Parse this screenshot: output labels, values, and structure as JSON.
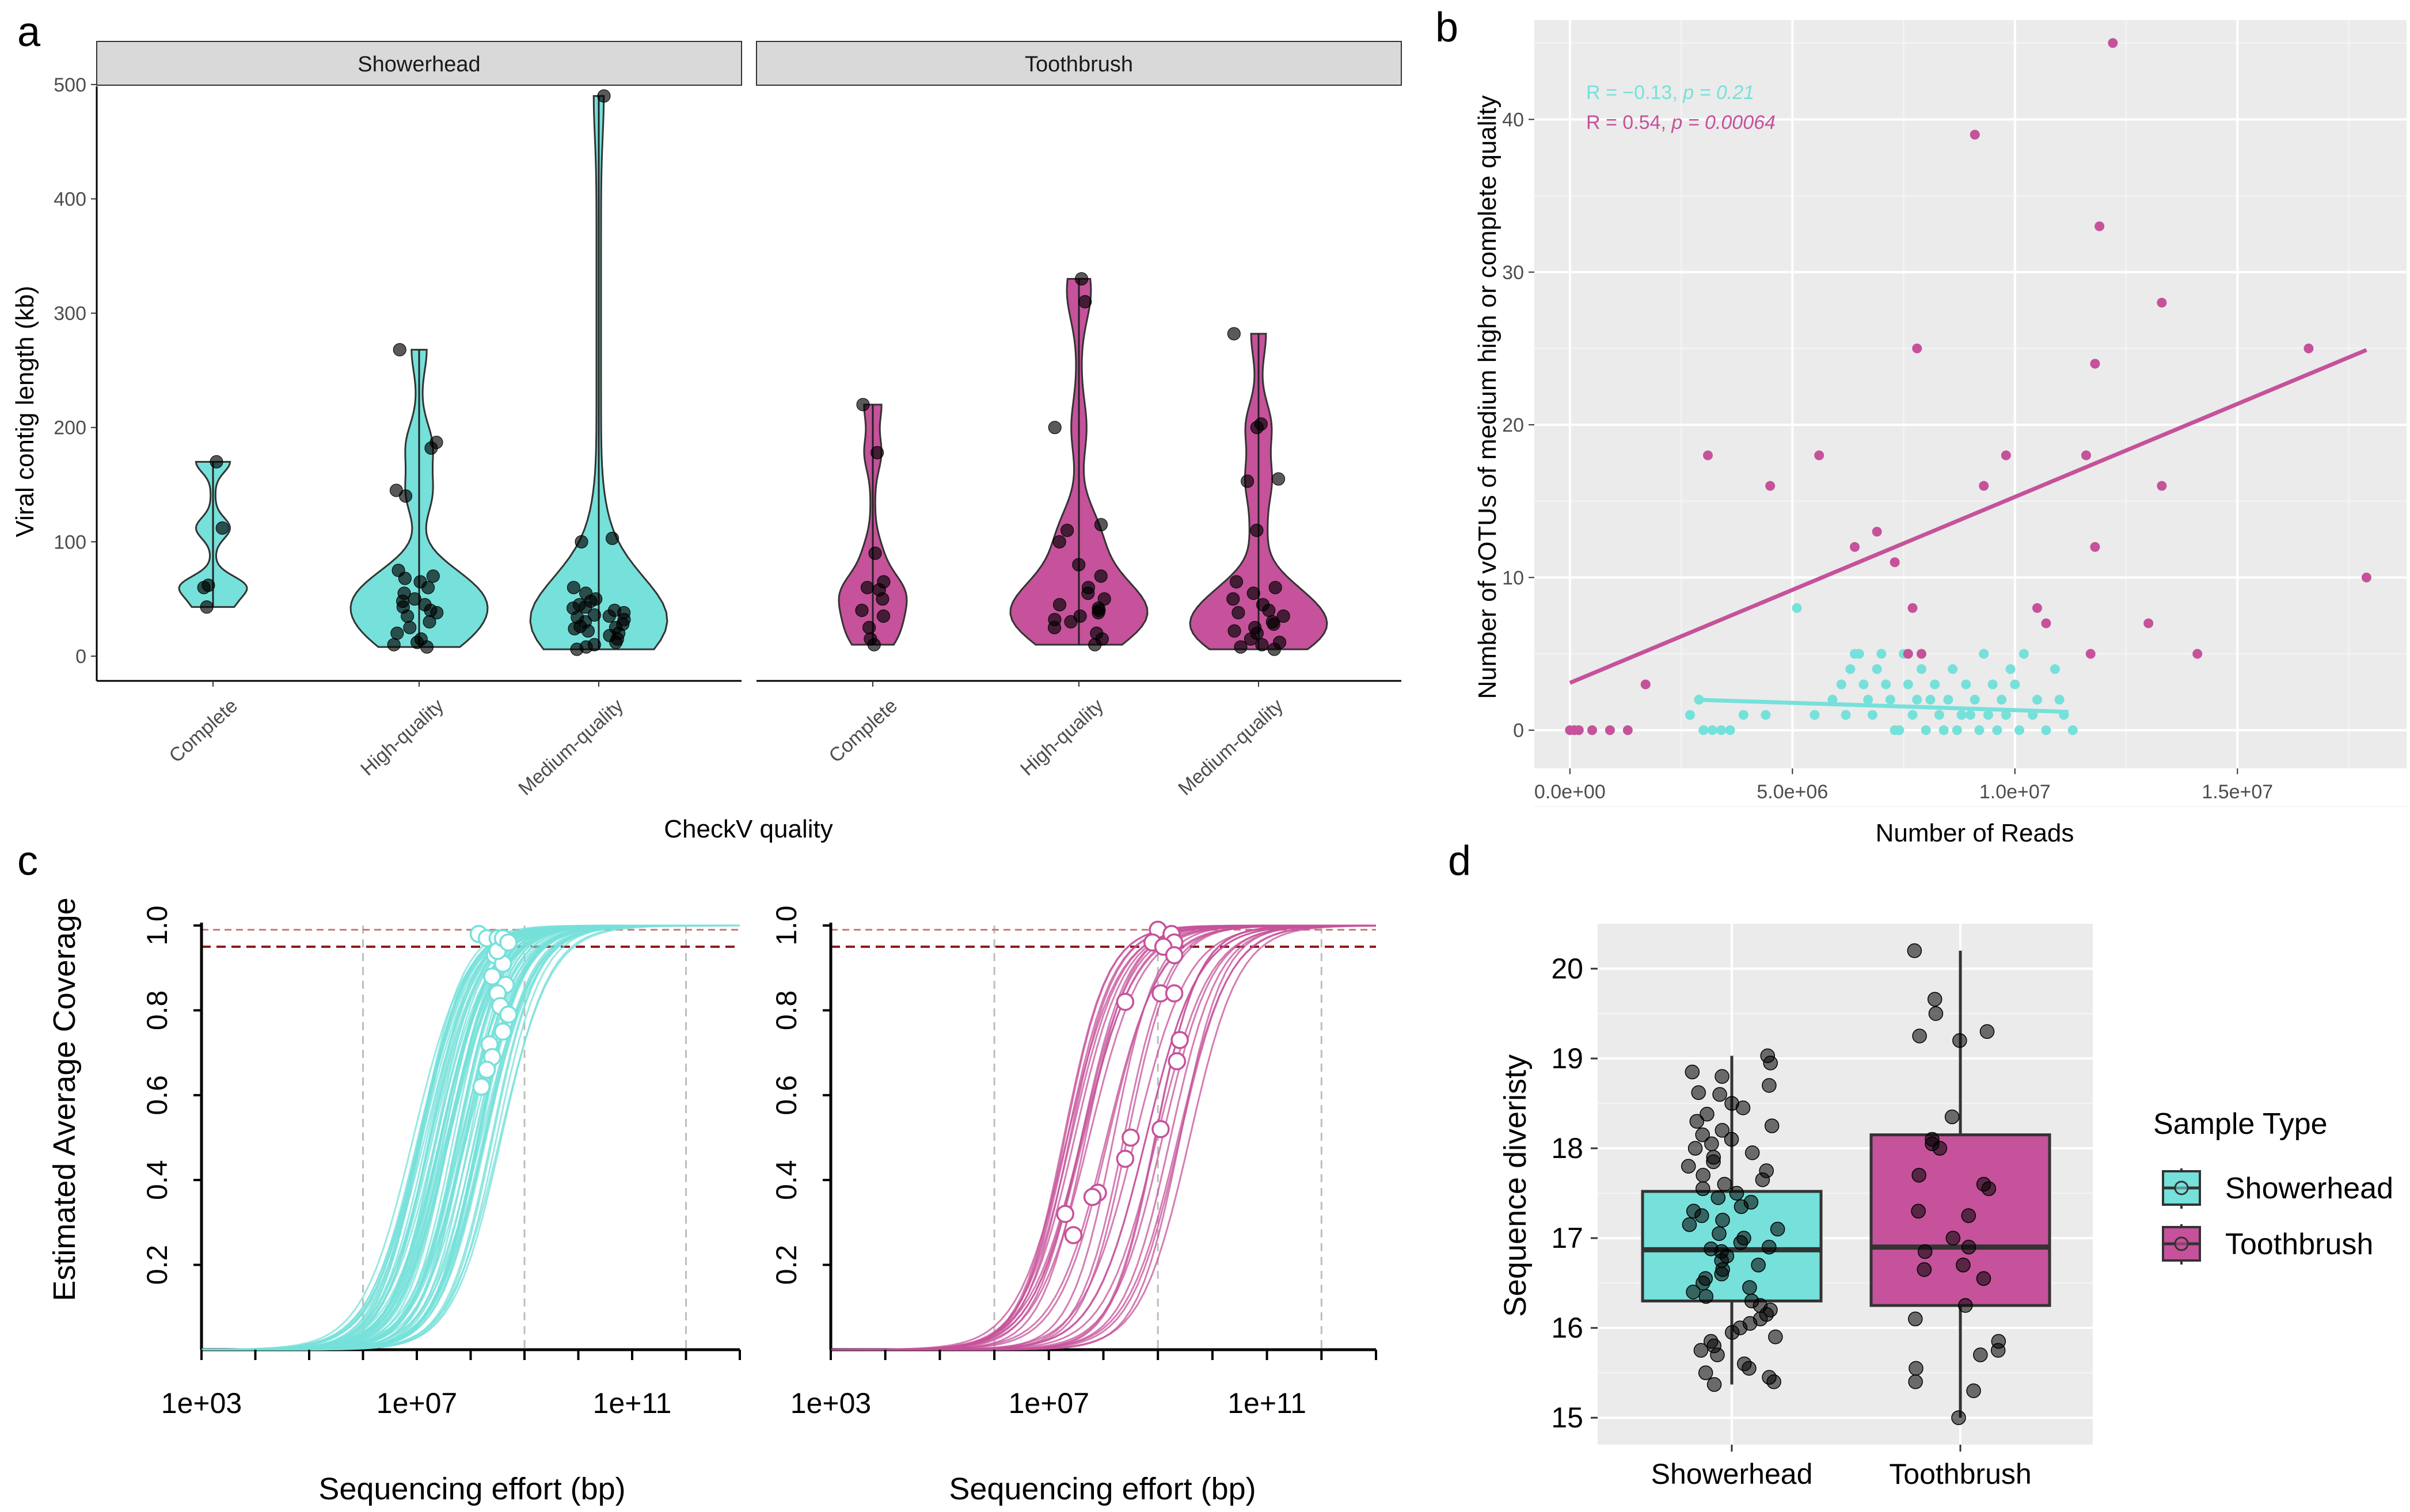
{
  "panels": {
    "a": "a",
    "b": "b",
    "c": "c",
    "d": "d"
  },
  "colors": {
    "showerhead": "#76E0DA",
    "toothbrush": "#C5529A",
    "grey_panel": "#EBEBEB",
    "strip": "#D9D9D9"
  },
  "chart_data": [
    {
      "id": "a",
      "type": "violin",
      "ylabel": "Viral contig length (kb)",
      "xlabel": "CheckV quality",
      "facets": [
        "Showerhead",
        "Toothbrush"
      ],
      "categories": [
        "Complete",
        "High-quality",
        "Medium-quality"
      ],
      "ylim": [
        0,
        510
      ],
      "yticks": [
        0,
        100,
        200,
        300,
        400,
        500
      ],
      "groups": [
        {
          "facet": "Showerhead",
          "category": "Complete",
          "points": [
            170,
            112,
            62,
            60,
            43
          ]
        },
        {
          "facet": "Showerhead",
          "category": "High-quality",
          "points": [
            268,
            187,
            182,
            145,
            140,
            75,
            70,
            68,
            65,
            60,
            55,
            50,
            48,
            45,
            43,
            40,
            38,
            35,
            30,
            25,
            20,
            15,
            12,
            10,
            8
          ]
        },
        {
          "facet": "Showerhead",
          "category": "Medium-quality",
          "points": [
            490,
            103,
            100,
            60,
            55,
            50,
            48,
            45,
            43,
            42,
            40,
            38,
            36,
            35,
            34,
            32,
            30,
            28,
            26,
            25,
            24,
            22,
            20,
            18,
            15,
            12,
            10,
            8,
            6
          ]
        },
        {
          "facet": "Toothbrush",
          "category": "Complete",
          "points": [
            220,
            178,
            90,
            65,
            60,
            58,
            50,
            40,
            35,
            25,
            15,
            10
          ]
        },
        {
          "facet": "Toothbrush",
          "category": "High-quality",
          "points": [
            330,
            310,
            200,
            115,
            110,
            100,
            80,
            70,
            60,
            55,
            50,
            45,
            42,
            40,
            38,
            35,
            32,
            30,
            25,
            20,
            15,
            10
          ]
        },
        {
          "facet": "Toothbrush",
          "category": "Medium-quality",
          "points": [
            282,
            203,
            200,
            155,
            153,
            110,
            65,
            60,
            55,
            50,
            45,
            40,
            38,
            35,
            30,
            28,
            25,
            22,
            20,
            15,
            12,
            10,
            8,
            6
          ]
        }
      ]
    },
    {
      "id": "b",
      "type": "scatter",
      "xlabel": "Number of Reads",
      "ylabel": "Number of vOTUs of medium high or complete quality",
      "xlim": [
        -800000,
        18800000
      ],
      "ylim": [
        -2.5,
        46.5
      ],
      "xticks": [
        0,
        5000000,
        10000000,
        15000000
      ],
      "xtick_labels": [
        "0.0e+00",
        "5.0e+06",
        "1.0e+07",
        "1.5e+07"
      ],
      "yticks": [
        0,
        10,
        20,
        30,
        40
      ],
      "annotations": [
        {
          "R": "R = −0.13,",
          "p": "p = 0.21",
          "group": "Showerhead"
        },
        {
          "R": "R = 0.54,",
          "p": "p = 0.00064",
          "group": "Toothbrush"
        }
      ],
      "fit_lines": [
        {
          "group": "Showerhead",
          "x": [
            2800000,
            11200000
          ],
          "y": [
            2.0,
            1.2
          ]
        },
        {
          "group": "Toothbrush",
          "x": [
            0,
            17900000
          ],
          "y": [
            3.1,
            24.9
          ]
        }
      ],
      "series": [
        {
          "name": "Showerhead",
          "points": [
            [
              2700000,
              1
            ],
            [
              2900000,
              2
            ],
            [
              3000000,
              0
            ],
            [
              3200000,
              0
            ],
            [
              3400000,
              0
            ],
            [
              3600000,
              0
            ],
            [
              3900000,
              1
            ],
            [
              4400000,
              1
            ],
            [
              5100000,
              8
            ],
            [
              5500000,
              1
            ],
            [
              5900000,
              2
            ],
            [
              6100000,
              3
            ],
            [
              6200000,
              1
            ],
            [
              6300000,
              4
            ],
            [
              6400000,
              5
            ],
            [
              6500000,
              5
            ],
            [
              6600000,
              3
            ],
            [
              6700000,
              2
            ],
            [
              6800000,
              1
            ],
            [
              6900000,
              4
            ],
            [
              7000000,
              5
            ],
            [
              7100000,
              3
            ],
            [
              7200000,
              2
            ],
            [
              7300000,
              0
            ],
            [
              7400000,
              0
            ],
            [
              7500000,
              5
            ],
            [
              7600000,
              3
            ],
            [
              7700000,
              1
            ],
            [
              7800000,
              2
            ],
            [
              7900000,
              4
            ],
            [
              8000000,
              0
            ],
            [
              8100000,
              2
            ],
            [
              8200000,
              3
            ],
            [
              8300000,
              1
            ],
            [
              8400000,
              0
            ],
            [
              8500000,
              2
            ],
            [
              8600000,
              4
            ],
            [
              8700000,
              0
            ],
            [
              8800000,
              1
            ],
            [
              8900000,
              3
            ],
            [
              9000000,
              1
            ],
            [
              9100000,
              2
            ],
            [
              9200000,
              0
            ],
            [
              9300000,
              5
            ],
            [
              9400000,
              1
            ],
            [
              9500000,
              3
            ],
            [
              9600000,
              0
            ],
            [
              9700000,
              2
            ],
            [
              9800000,
              1
            ],
            [
              9900000,
              4
            ],
            [
              10000000,
              3
            ],
            [
              10100000,
              0
            ],
            [
              10200000,
              5
            ],
            [
              10400000,
              1
            ],
            [
              10500000,
              2
            ],
            [
              10700000,
              0
            ],
            [
              10900000,
              4
            ],
            [
              11000000,
              2
            ],
            [
              11100000,
              1
            ],
            [
              11300000,
              0
            ]
          ]
        },
        {
          "name": "Toothbrush",
          "points": [
            [
              0,
              0
            ],
            [
              100000,
              0
            ],
            [
              200000,
              0
            ],
            [
              500000,
              0
            ],
            [
              900000,
              0
            ],
            [
              1300000,
              0
            ],
            [
              1700000,
              3
            ],
            [
              3100000,
              18
            ],
            [
              4500000,
              16
            ],
            [
              5600000,
              18
            ],
            [
              6400000,
              12
            ],
            [
              6900000,
              13
            ],
            [
              7300000,
              11
            ],
            [
              7600000,
              5
            ],
            [
              7700000,
              8
            ],
            [
              7800000,
              25
            ],
            [
              7900000,
              5
            ],
            [
              9300000,
              16
            ],
            [
              9100000,
              39
            ],
            [
              9800000,
              18
            ],
            [
              10500000,
              8
            ],
            [
              10700000,
              7
            ],
            [
              11600000,
              18
            ],
            [
              11700000,
              5
            ],
            [
              11800000,
              12
            ],
            [
              11800000,
              24
            ],
            [
              11900000,
              33
            ],
            [
              12200000,
              45
            ],
            [
              13000000,
              7
            ],
            [
              13300000,
              28
            ],
            [
              13300000,
              16
            ],
            [
              14100000,
              5
            ],
            [
              16600000,
              25
            ],
            [
              17900000,
              10
            ]
          ]
        }
      ]
    },
    {
      "id": "c",
      "type": "line",
      "ylabel": "Estimated Average Coverage",
      "xlabel": "Sequencing effort (bp)",
      "x_log10_range": [
        3,
        13
      ],
      "xtick_labels": [
        "1e+03",
        "1e+07",
        "1e+11"
      ],
      "xticks_log10": [
        3,
        7,
        11
      ],
      "yticks": [
        0.2,
        0.4,
        0.6,
        0.8,
        1.0
      ],
      "ylim": [
        0,
        1.0
      ],
      "ref_lines": [
        0.99,
        0.95
      ],
      "vlines_log10": [
        6,
        9,
        12
      ],
      "facets": [
        {
          "name": "Showerhead",
          "curve_count": 70,
          "midpoint_log10_range": [
            6.9,
            8.6
          ],
          "markers": [
            [
              8.15,
              0.98
            ],
            [
              8.3,
              0.97
            ],
            [
              8.5,
              0.97
            ],
            [
              8.45,
              0.93
            ],
            [
              8.6,
              0.91
            ],
            [
              8.4,
              0.88
            ],
            [
              8.65,
              0.86
            ],
            [
              8.5,
              0.84
            ],
            [
              8.55,
              0.81
            ],
            [
              8.7,
              0.79
            ],
            [
              8.6,
              0.75
            ],
            [
              8.35,
              0.72
            ],
            [
              8.4,
              0.69
            ],
            [
              8.3,
              0.66
            ],
            [
              8.2,
              0.62
            ],
            [
              8.5,
              0.94
            ],
            [
              8.6,
              0.97
            ],
            [
              8.7,
              0.96
            ]
          ]
        },
        {
          "name": "Toothbrush",
          "curve_count": 30,
          "midpoint_log10_range": [
            7.2,
            9.6
          ],
          "markers": [
            [
              9.0,
              0.99
            ],
            [
              9.25,
              0.98
            ],
            [
              8.9,
              0.96
            ],
            [
              9.3,
              0.96
            ],
            [
              9.1,
              0.95
            ],
            [
              9.3,
              0.93
            ],
            [
              8.4,
              0.82
            ],
            [
              9.05,
              0.84
            ],
            [
              9.3,
              0.84
            ],
            [
              9.4,
              0.73
            ],
            [
              9.35,
              0.68
            ],
            [
              8.5,
              0.5
            ],
            [
              9.05,
              0.52
            ],
            [
              7.9,
              0.37
            ],
            [
              7.8,
              0.36
            ],
            [
              7.3,
              0.32
            ],
            [
              7.45,
              0.27
            ],
            [
              8.4,
              0.45
            ]
          ]
        }
      ]
    },
    {
      "id": "d",
      "type": "box",
      "ylabel": "Sequence diveristy",
      "categories": [
        "Showerhead",
        "Toothbrush"
      ],
      "ylim": [
        14.7,
        20.5
      ],
      "yticks": [
        15,
        16,
        17,
        18,
        19,
        20
      ],
      "legend_title": "Sample Type",
      "legend_position": "right",
      "boxes": [
        {
          "name": "Showerhead",
          "q1": 16.3,
          "median": 16.87,
          "q3": 17.52,
          "whisker_low": 15.37,
          "whisker_high": 19.03
        },
        {
          "name": "Toothbrush",
          "q1": 16.25,
          "median": 16.9,
          "q3": 18.15,
          "whisker_low": 15.0,
          "whisker_high": 20.2
        }
      ],
      "points": [
        {
          "group": "Showerhead",
          "values": [
            19.03,
            18.95,
            18.85,
            18.8,
            18.7,
            18.62,
            18.6,
            18.5,
            18.45,
            18.38,
            18.3,
            18.25,
            18.2,
            18.15,
            18.1,
            18.05,
            18.0,
            17.95,
            17.9,
            17.85,
            17.8,
            17.75,
            17.7,
            17.65,
            17.6,
            17.55,
            17.5,
            17.45,
            17.4,
            17.35,
            17.3,
            17.25,
            17.2,
            17.15,
            17.1,
            17.05,
            17.0,
            16.95,
            16.9,
            16.88,
            16.85,
            16.8,
            16.75,
            16.7,
            16.65,
            16.6,
            16.55,
            16.5,
            16.45,
            16.4,
            16.35,
            16.3,
            16.25,
            16.2,
            16.15,
            16.1,
            16.05,
            16.0,
            15.95,
            15.9,
            15.85,
            15.8,
            15.75,
            15.7,
            15.6,
            15.55,
            15.5,
            15.45,
            15.4,
            15.37
          ]
        },
        {
          "group": "Toothbrush",
          "values": [
            20.2,
            19.66,
            19.5,
            19.3,
            19.25,
            19.2,
            18.35,
            18.1,
            18.05,
            18.0,
            17.7,
            17.6,
            17.55,
            17.3,
            17.25,
            17.0,
            16.9,
            16.85,
            16.7,
            16.65,
            16.55,
            16.25,
            16.1,
            15.85,
            15.75,
            15.7,
            15.55,
            15.4,
            15.3,
            15.0
          ]
        }
      ]
    }
  ]
}
